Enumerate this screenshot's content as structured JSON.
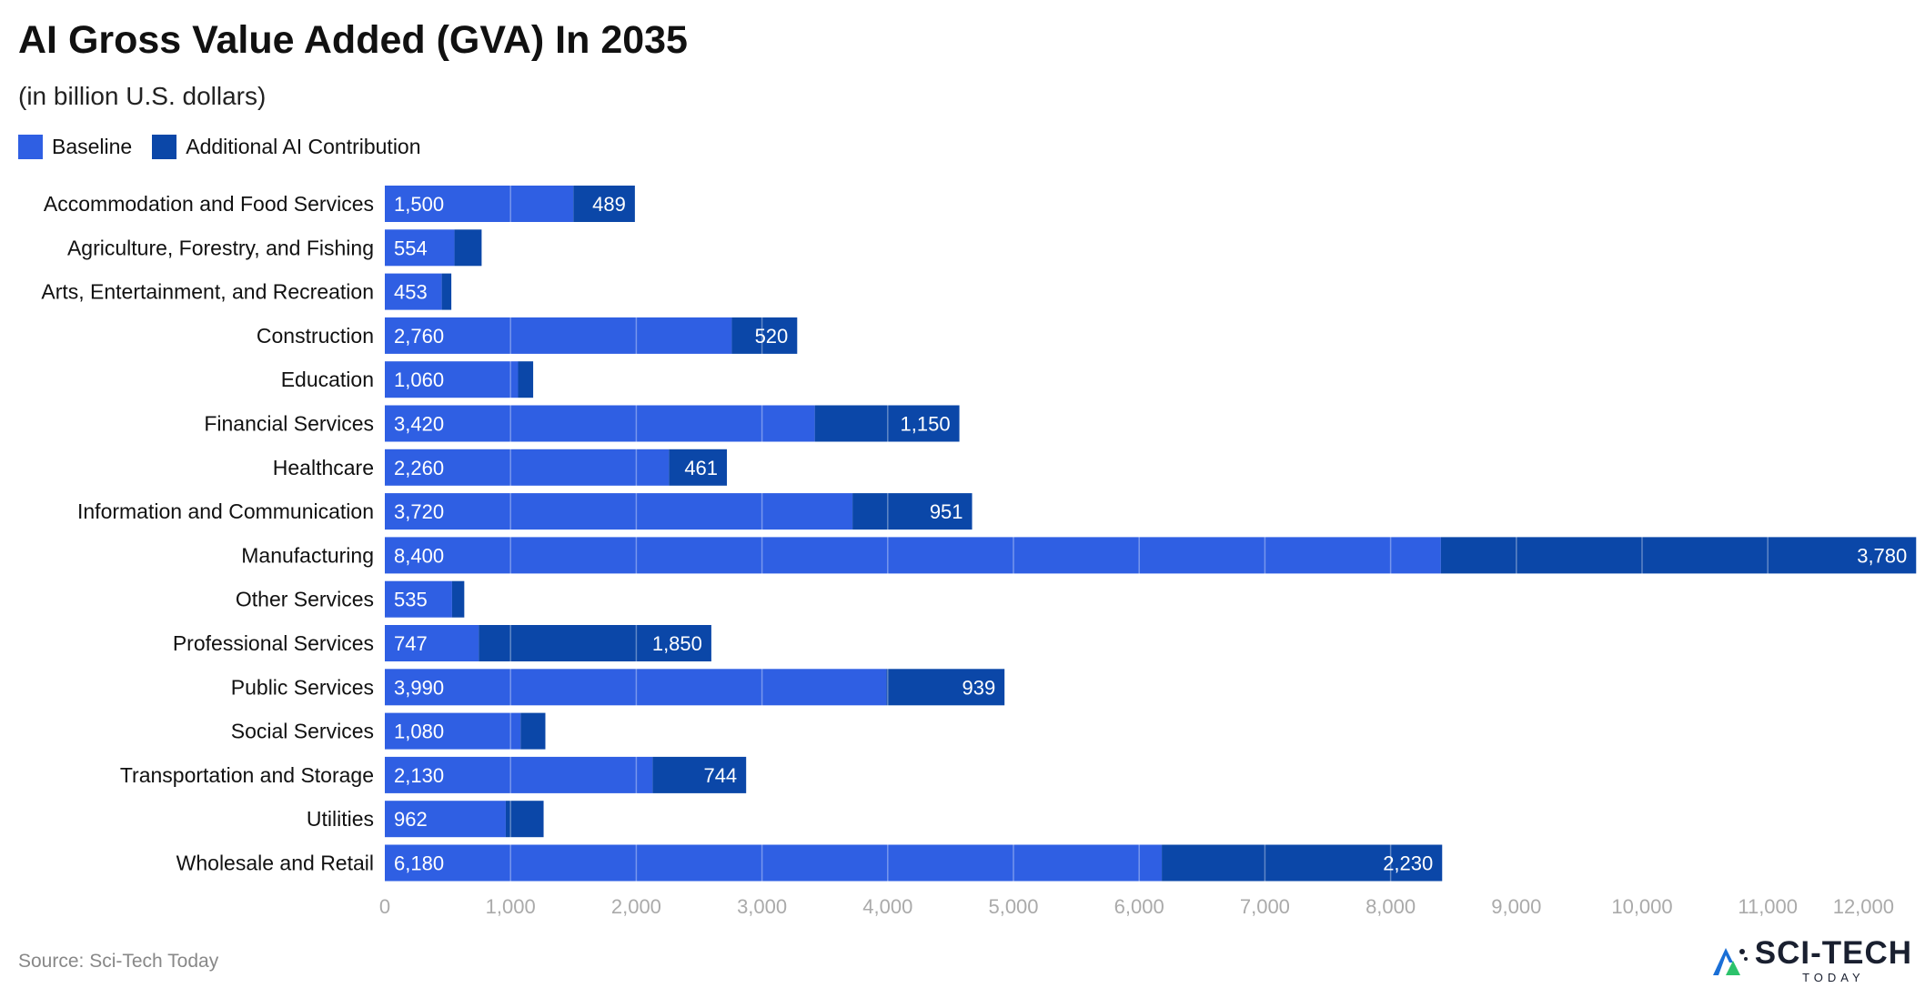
{
  "title": "AI Gross Value Added (GVA) In 2035",
  "subtitle": "(in billion U.S. dollars)",
  "source": "Source: Sci-Tech Today",
  "brand": {
    "name": "SCI-TECH",
    "tagline": "TODAY"
  },
  "colors": {
    "baseline": "#2f5fe3",
    "additional": "#0b47a8",
    "gridline": "#d9d9d9",
    "tick": "#aaaaaa",
    "label": "#111111"
  },
  "chart_data": {
    "type": "bar",
    "orientation": "horizontal",
    "stacked": true,
    "title": "AI Gross Value Added (GVA) In 2035",
    "subtitle": "(in billion U.S. dollars)",
    "xlim": [
      0,
      12000
    ],
    "xticks": [
      0,
      1000,
      2000,
      3000,
      4000,
      5000,
      6000,
      7000,
      8000,
      9000,
      10000,
      11000,
      12000
    ],
    "xtick_labels": [
      "0",
      "1,000",
      "2,000",
      "3,000",
      "4,000",
      "5,000",
      "6,000",
      "7,000",
      "8,000",
      "9,000",
      "10,000",
      "11,000",
      "12,000"
    ],
    "categories": [
      "Accommodation and Food Services",
      "Agriculture, Forestry, and Fishing",
      "Arts, Entertainment, and Recreation",
      "Construction",
      "Education",
      "Financial Services",
      "Healthcare",
      "Information and Communication",
      "Manufacturing",
      "Other Services",
      "Professional Services",
      "Public Services",
      "Social Services",
      "Transportation and Storage",
      "Utilities",
      "Wholesale and Retail"
    ],
    "series": [
      {
        "name": "Baseline",
        "values": [
          1500,
          554,
          453,
          2760,
          1060,
          3420,
          2260,
          3720,
          8400,
          535,
          747,
          3990,
          1080,
          2130,
          962,
          6180
        ],
        "labels": [
          "1,500",
          "554",
          "453",
          "2,760",
          "1,060",
          "3,420",
          "2,260",
          "3,720",
          "8,400",
          "535",
          "747",
          "3,990",
          "1,080",
          "2,130",
          "962",
          "6,180"
        ]
      },
      {
        "name": "Additional AI Contribution",
        "values": [
          489,
          216,
          76,
          520,
          120,
          1150,
          461,
          951,
          3780,
          97,
          1850,
          939,
          197,
          744,
          301,
          2230
        ],
        "labels": [
          "489",
          "",
          "",
          "520",
          "",
          "1,150",
          "461",
          "951",
          "3,780",
          "",
          "1,850",
          "939",
          "",
          "744",
          "",
          "2,230"
        ]
      }
    ],
    "legend": [
      "Baseline",
      "Additional AI Contribution"
    ],
    "legend_position": "top-left"
  }
}
